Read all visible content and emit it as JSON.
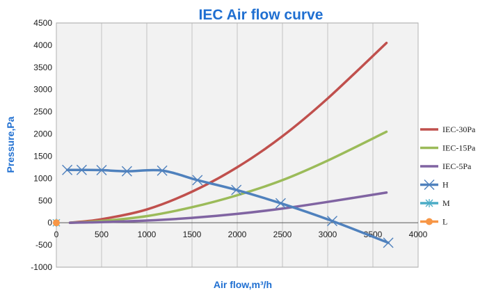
{
  "chart_data": {
    "type": "line",
    "title": "IEC Air flow curve",
    "xlabel": "Air flow,m³/h",
    "ylabel": "Pressure,Pa",
    "xlim": [
      0,
      4000
    ],
    "ylim": [
      -1000,
      4500
    ],
    "x_ticks": [
      0,
      500,
      1000,
      1500,
      2000,
      2500,
      3000,
      3500,
      4000
    ],
    "y_ticks": [
      -1000,
      -500,
      0,
      500,
      1000,
      1500,
      2000,
      2500,
      3000,
      3500,
      4000,
      4500
    ],
    "grid": "vertical",
    "legend_position": "right",
    "series": [
      {
        "name": "IEC-30Pa",
        "color": "#c0504d",
        "marker": "none",
        "x": [
          150,
          500,
          1000,
          1500,
          2000,
          2500,
          3000,
          3650
        ],
        "y": [
          0,
          80,
          300,
          700,
          1250,
          1950,
          2800,
          4050
        ]
      },
      {
        "name": "IEC-15Pa",
        "color": "#9bbb59",
        "marker": "none",
        "x": [
          150,
          500,
          1000,
          1500,
          2000,
          2500,
          3000,
          3650
        ],
        "y": [
          0,
          40,
          150,
          350,
          620,
          960,
          1400,
          2050
        ]
      },
      {
        "name": "IEC-5Pa",
        "color": "#8064a2",
        "marker": "none",
        "x": [
          150,
          500,
          1000,
          1500,
          2000,
          2500,
          3000,
          3650
        ],
        "y": [
          0,
          15,
          50,
          110,
          200,
          320,
          470,
          680
        ]
      },
      {
        "name": "H",
        "color": "#4f81bd",
        "marker": "x",
        "x": [
          120,
          280,
          500,
          780,
          1170,
          1560,
          1990,
          2480,
          3050,
          3670
        ],
        "y": [
          1190,
          1190,
          1185,
          1160,
          1175,
          960,
          740,
          440,
          40,
          -450
        ]
      },
      {
        "name": "M",
        "color": "#4bacc6",
        "marker": "asterisk",
        "x": [
          0
        ],
        "y": [
          0
        ]
      },
      {
        "name": "L",
        "color": "#f79646",
        "marker": "circle",
        "x": [
          0
        ],
        "y": [
          0
        ]
      }
    ]
  }
}
